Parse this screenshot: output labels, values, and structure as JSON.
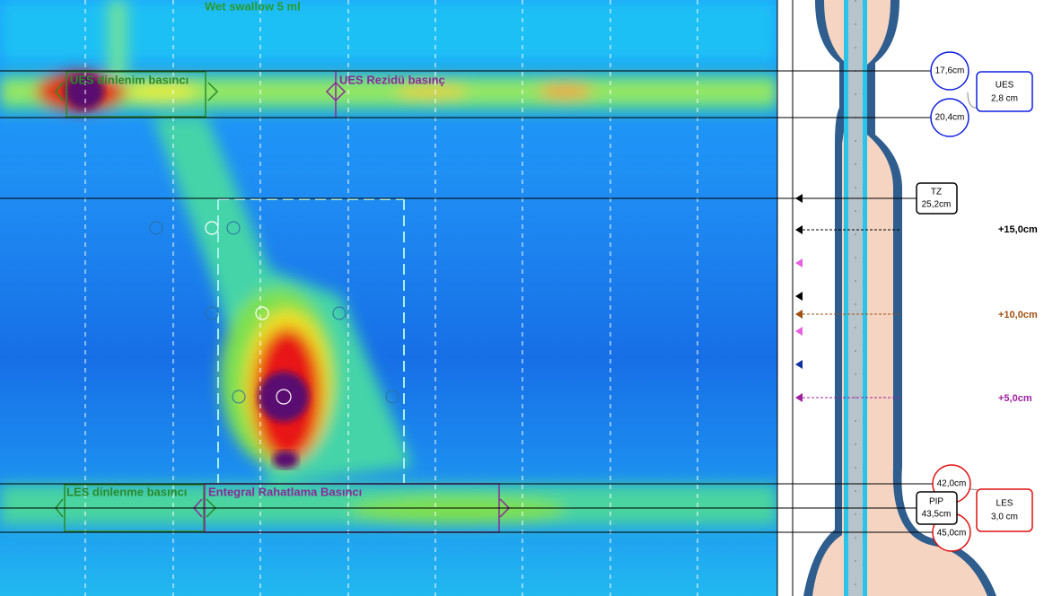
{
  "plot": {
    "title": "Wet swallow 5 ml",
    "regions": [
      "UES dinlenim basıncı",
      "UES Rezidü basınç",
      "LES dinlenme basıncı",
      "Entegral Rahatlama Basıncı"
    ]
  },
  "anatomy": {
    "ues": {
      "upper": "17,6cm",
      "lower": "20,4cm",
      "name": "UES",
      "length": "2,8 cm"
    },
    "tz": {
      "name": "TZ",
      "position": "25,2cm"
    },
    "markers": [
      "+15,0cm",
      "+10,0cm",
      "+5,0cm"
    ],
    "les": {
      "upper": "42,0cm",
      "lower": "45,0cm",
      "name": "LES",
      "length": "3,0 cm"
    },
    "pip": {
      "name": "PIP",
      "position": "43,5cm"
    }
  }
}
